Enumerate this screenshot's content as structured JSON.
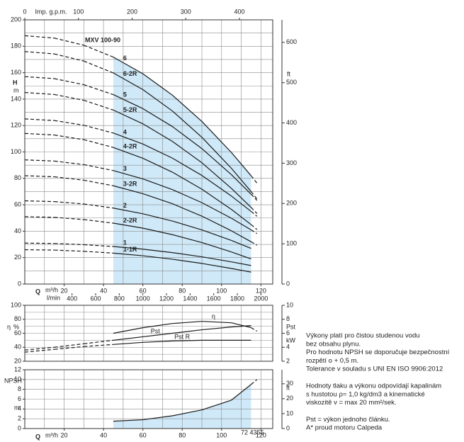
{
  "chart_data": [
    {
      "type": "line",
      "title": "MXV 100-90",
      "x_label": "Q",
      "x_unit": "m³/h",
      "y_label": "H",
      "y_unit": "m",
      "y2_label": "ft",
      "xlim": [
        0,
        126
      ],
      "ylim": [
        0,
        200
      ],
      "xticks": [
        20,
        40,
        60,
        80,
        100,
        120
      ],
      "yticks": [
        0,
        20,
        40,
        60,
        80,
        100,
        120,
        140,
        160,
        180,
        200
      ],
      "y2lim": [
        0,
        656
      ],
      "y2ticks": [
        0,
        100,
        200,
        300,
        400,
        500,
        600
      ],
      "grid_step": [
        10,
        10
      ],
      "solid_range": [
        45,
        115
      ],
      "color": "#1a1a1a",
      "shade_color": "#cfe9f8",
      "top_axis": {
        "label": "Imp. g.p.m.",
        "lim": [
          0,
          462
        ],
        "ticks": [
          0,
          100,
          200,
          300,
          400
        ]
      },
      "l_axis": {
        "label": "l/min",
        "lim": [
          0,
          2100
        ],
        "ticks": [
          400,
          600,
          800,
          1000,
          1200,
          1400,
          1600,
          1800,
          2000
        ]
      },
      "x": [
        0,
        15,
        30,
        45,
        60,
        75,
        90,
        105,
        115,
        118
      ],
      "series": [
        {
          "name": "6",
          "values": [
            188,
            186.2,
            180.8,
            171.8,
            159.2,
            143.0,
            123.1,
            99.6,
            82,
            76.4
          ]
        },
        {
          "name": "6-2R",
          "values": [
            176,
            174.2,
            168.8,
            159.8,
            147.2,
            131.0,
            111.1,
            87.6,
            70,
            64.4
          ]
        },
        {
          "name": "5",
          "values": [
            157,
            155.5,
            150.9,
            143.4,
            132.8,
            119.2,
            102.5,
            82.8,
            68,
            63.3
          ]
        },
        {
          "name": "5-2R",
          "values": [
            145,
            143.5,
            139.1,
            131.7,
            121.3,
            108.0,
            91.8,
            72.4,
            58,
            53.4
          ]
        },
        {
          "name": "4",
          "values": [
            125,
            123.8,
            120.2,
            114.3,
            106.0,
            95.3,
            82.2,
            66.6,
            55,
            51.3
          ]
        },
        {
          "name": "4-2R",
          "values": [
            114,
            112.8,
            109.3,
            103.4,
            95.2,
            84.7,
            71.8,
            56.5,
            45,
            41.3
          ]
        },
        {
          "name": "3",
          "values": [
            94,
            93.1,
            90.4,
            85.9,
            79.6,
            71.5,
            61.6,
            49.8,
            41,
            38.2
          ]
        },
        {
          "name": "3-2R",
          "values": [
            82,
            81.2,
            78.6,
            74.4,
            68.4,
            60.8,
            51.4,
            40.3,
            32,
            29.4
          ]
        },
        {
          "name": "2",
          "values": [
            63,
            62.4,
            60.6,
            57.5,
            53.2,
            47.7,
            41.0,
            33.0,
            27,
            null
          ]
        },
        {
          "name": "2-2R",
          "values": [
            51,
            50.5,
            48.8,
            46.1,
            42.3,
            37.4,
            31.4,
            24.3,
            19,
            null
          ]
        },
        {
          "name": "1",
          "values": [
            31,
            30.7,
            29.8,
            28.4,
            26.4,
            23.8,
            20.6,
            16.8,
            14,
            null
          ]
        },
        {
          "name": "1-1R",
          "values": [
            26,
            25.7,
            24.8,
            23.4,
            21.4,
            18.8,
            15.6,
            11.8,
            9,
            null
          ]
        }
      ]
    },
    {
      "type": "line",
      "y_label": "η",
      "y_unit": "%",
      "y2_label": "Pst",
      "y2_unit": "kW",
      "xlim": [
        0,
        126
      ],
      "ylim": [
        20,
        100
      ],
      "yticks": [
        20,
        40,
        60,
        80,
        100
      ],
      "y2lim": [
        2,
        10
      ],
      "y2ticks": [
        2,
        4,
        6,
        8,
        10
      ],
      "grid_step": [
        10,
        10
      ],
      "solid_range": [
        45,
        115
      ],
      "color": "#1a1a1a",
      "x": [
        0,
        15,
        30,
        45,
        60,
        75,
        90,
        105,
        115,
        118
      ],
      "series": [
        {
          "name": "η",
          "values": [
            null,
            null,
            null,
            60,
            68,
            74,
            77,
            75,
            68,
            63
          ]
        },
        {
          "name": "Pst",
          "axis": "y2",
          "values": [
            3.6,
            4.0,
            4.5,
            5.0,
            5.5,
            6.0,
            6.5,
            6.9,
            7.1,
            null
          ]
        },
        {
          "name": "Pst R",
          "axis": "y2",
          "values": [
            3.3,
            3.7,
            4.1,
            4.4,
            4.7,
            4.9,
            5.0,
            5.0,
            5.0,
            null
          ]
        }
      ]
    },
    {
      "type": "line",
      "x_label": "Q",
      "x_unit": "m³/h",
      "y_label": "NPSH",
      "y_unit": "m",
      "y2_label": "ft",
      "code": "72 4355",
      "xlim": [
        0,
        126
      ],
      "ylim": [
        0,
        12
      ],
      "xticks": [
        20,
        40,
        60,
        80,
        100,
        120
      ],
      "yticks": [
        0,
        2,
        4,
        6,
        8,
        10,
        12
      ],
      "y2lim": [
        0,
        39.4
      ],
      "y2ticks": [
        0,
        10,
        20,
        30
      ],
      "grid_step": [
        10,
        2
      ],
      "solid_range": [
        45,
        115
      ],
      "color": "#1a1a1a",
      "shade_color": "#cfe9f8",
      "x": [
        45,
        60,
        75,
        90,
        105,
        115,
        118
      ],
      "series": [
        {
          "values": [
            1.5,
            1.8,
            2.6,
            3.8,
            5.8,
            9.0,
            10.0
          ]
        }
      ]
    }
  ],
  "notes": {
    "paragraphs": [
      [
        "Výkony platí pro čistou studenou vodu",
        "bez obsahu plynu.",
        "Pro hodnotu NPSH se doporučuje bezpečnostní",
        "rozpětí o + 0,5 m.",
        "Tolerance v souladu s UNI EN ISO 9906:2012"
      ],
      [
        "Hodnoty tlaku a výkonu odpovídají kapalinám",
        "s hustotou ρ= 1,0 kg/dm3 a kinematické",
        "viskozitě v = max 20 mm²/sek."
      ],
      [
        "Pst = výkon jednoho článku.",
        "A* proud motoru Calpeda"
      ]
    ]
  }
}
